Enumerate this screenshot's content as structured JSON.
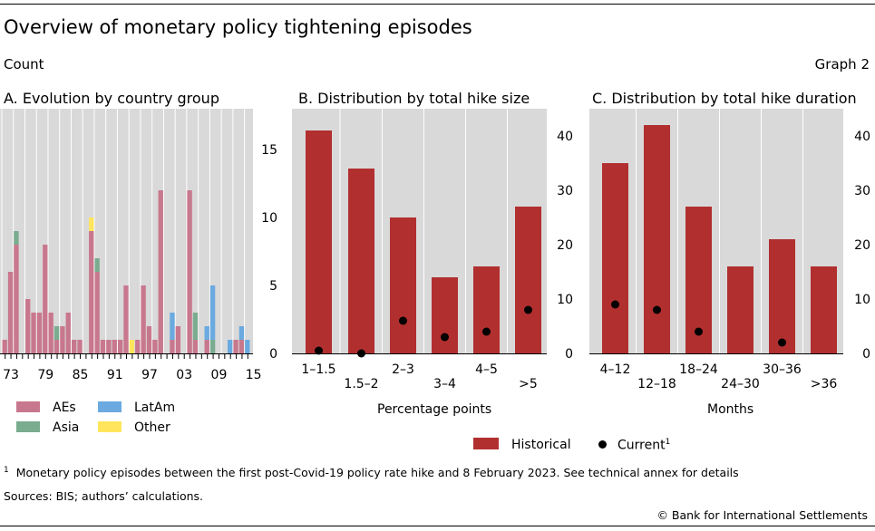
{
  "header": {
    "title": "Overview of monetary policy tightening episodes",
    "unit": "Count",
    "graph_number": "Graph 2"
  },
  "colors": {
    "panel_bg": "#d9d9d9",
    "historical": "#b22f2f",
    "current": "#000000",
    "aes": "#c8788e",
    "asia": "#7aac8f",
    "latam": "#6aaae0",
    "other": "#ffe55c"
  },
  "chart_data": [
    {
      "type": "bar",
      "stacked": true,
      "title": "A. Evolution by country group",
      "x_tick_labels": [
        "73",
        "79",
        "85",
        "91",
        "97",
        "03",
        "09",
        "15"
      ],
      "ylim": [
        0,
        18
      ],
      "y_ticks": [
        "0",
        "5",
        "10",
        "15"
      ],
      "y_axis_side": "right",
      "series": [
        {
          "name": "AEs",
          "color": "#c8788e",
          "values": [
            1,
            6,
            8,
            0,
            4,
            3,
            3,
            8,
            3,
            1,
            2,
            3,
            1,
            1,
            0,
            9,
            6,
            1,
            1,
            1,
            1,
            5,
            0,
            1,
            5,
            2,
            1,
            12,
            0,
            1,
            2,
            0,
            12,
            1,
            0,
            1,
            0,
            0,
            0,
            0,
            1,
            1,
            0
          ]
        },
        {
          "name": "Asia",
          "color": "#7aac8f",
          "values": [
            0,
            0,
            1,
            0,
            0,
            0,
            0,
            0,
            0,
            1,
            0,
            0,
            0,
            0,
            0,
            0,
            1,
            0,
            0,
            0,
            0,
            0,
            0,
            0,
            0,
            0,
            0,
            0,
            0,
            0,
            0,
            0,
            0,
            2,
            0,
            0,
            1,
            0,
            0,
            0,
            0,
            0,
            0
          ]
        },
        {
          "name": "LatAm",
          "color": "#6aaae0",
          "values": [
            0,
            0,
            0,
            0,
            0,
            0,
            0,
            0,
            0,
            0,
            0,
            0,
            0,
            0,
            0,
            0,
            0,
            0,
            0,
            0,
            0,
            0,
            0,
            0,
            0,
            0,
            0,
            0,
            0,
            2,
            0,
            0,
            0,
            0,
            0,
            1,
            4,
            0,
            0,
            1,
            0,
            1,
            1
          ]
        },
        {
          "name": "Other",
          "color": "#ffe55c",
          "values": [
            0,
            0,
            0,
            0,
            0,
            0,
            0,
            0,
            0,
            0,
            0,
            0,
            0,
            0,
            0,
            1,
            0,
            0,
            0,
            0,
            0,
            0,
            1,
            0,
            0,
            0,
            0,
            0,
            0,
            0,
            0,
            0,
            0,
            0,
            0,
            0,
            0,
            0,
            0,
            0,
            0,
            0,
            0
          ]
        }
      ]
    },
    {
      "type": "bar",
      "title": "B. Distribution by total hike size",
      "xlabel": "Percentage points",
      "categories": [
        "1–1.5",
        "1.5–2",
        "2–3",
        "3–4",
        "4–5",
        ">5"
      ],
      "ylim": [
        0,
        45
      ],
      "y_ticks": [
        "0",
        "10",
        "20",
        "30",
        "40"
      ],
      "y_axis_side": "right",
      "series": [
        {
          "name": "Historical",
          "type": "bar",
          "color": "#b22f2f",
          "values": [
            41,
            34,
            25,
            14,
            16,
            27
          ]
        },
        {
          "name": "Current",
          "type": "scatter",
          "color": "#000000",
          "values": [
            0.5,
            0,
            6,
            3,
            4,
            8
          ]
        }
      ]
    },
    {
      "type": "bar",
      "title": "C. Distribution by total hike duration",
      "xlabel": "Months",
      "categories": [
        "4–12",
        "12–18",
        "18–24",
        "24–30",
        "30–36",
        ">36"
      ],
      "ylim": [
        0,
        45
      ],
      "y_ticks": [
        "0",
        "10",
        "20",
        "30",
        "40"
      ],
      "y_axis_side": "right",
      "series": [
        {
          "name": "Historical",
          "type": "bar",
          "color": "#b22f2f",
          "values": [
            35,
            42,
            27,
            16,
            21,
            16
          ]
        },
        {
          "name": "Current",
          "type": "scatter",
          "color": "#000000",
          "values": [
            9,
            8,
            4,
            null,
            2,
            null
          ]
        }
      ]
    }
  ],
  "legend": {
    "panelA": [
      "AEs",
      "LatAm",
      "Asia",
      "Other"
    ],
    "panelBC": {
      "historical": "Historical",
      "current": "Current",
      "current_sup": "1"
    }
  },
  "footer": {
    "footnote_mark": "1",
    "footnote": "Monetary policy episodes between the first post-Covid-19 policy rate hike and 8 February 2023. See technical annex for details",
    "sources": "Sources: BIS; authors’ calculations.",
    "copyright": "© Bank for International Settlements"
  }
}
